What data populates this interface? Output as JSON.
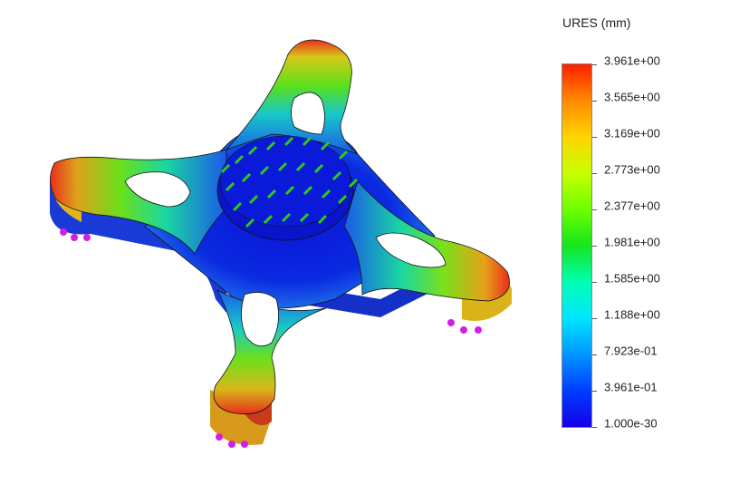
{
  "legend": {
    "title": "URES (mm)",
    "ticks": [
      "3.961e+00",
      "3.565e+00",
      "3.169e+00",
      "2.773e+00",
      "2.377e+00",
      "1.981e+00",
      "1.585e+00",
      "1.188e+00",
      "7.923e-01",
      "3.961e-01",
      "1.000e-30"
    ]
  },
  "colors": {
    "max": "#ff1e00",
    "mid": "#14e61e",
    "min": "#1400e6",
    "load_arrows": "#2ecc1a",
    "fixtures": "#d21ee6"
  }
}
